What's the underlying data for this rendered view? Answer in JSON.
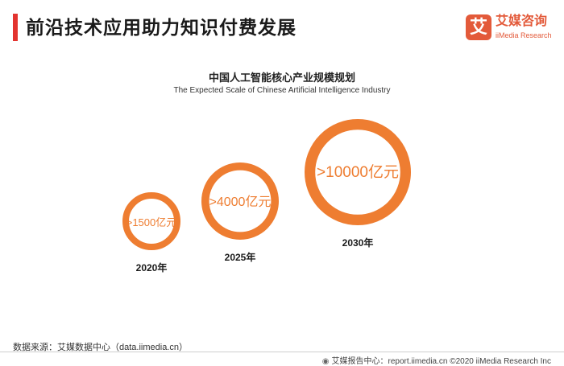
{
  "header": {
    "title": "前沿技术应用助力知识付费发展",
    "accent_color": "#e3342f"
  },
  "logo": {
    "mark": "艾",
    "name": "艾媒咨询",
    "sub": "iiMedia Research",
    "color": "#e35a3a"
  },
  "chart_data": {
    "type": "bubble",
    "title": "中国人工智能核心产业规模规划",
    "subtitle": "The Expected Scale of Chinese Artificial Intelligence Industry",
    "unit": "亿元",
    "color": "#ee7d31",
    "items": [
      {
        "year": "2020年",
        "value": 1500,
        "label": ">1500亿元"
      },
      {
        "year": "2025年",
        "value": 4000,
        "label": ">4000亿元"
      },
      {
        "year": "2030年",
        "value": 10000,
        "label": ">10000亿元"
      }
    ]
  },
  "source": "数据来源：艾媒数据中心（data.iimedia.cn）",
  "footer": {
    "icon": "globe-icon",
    "text": "艾媒报告中心：report.iimedia.cn ©2020  iiMedia Research  Inc"
  }
}
